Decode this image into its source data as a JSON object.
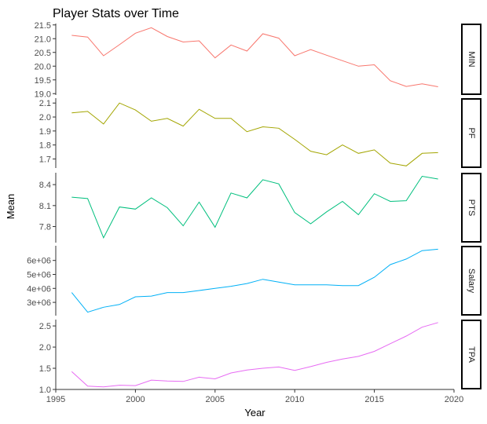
{
  "chart_data": {
    "type": "line",
    "title": "Player Stats over Time",
    "xlabel": "Year",
    "ylabel": "Mean",
    "xlim": [
      1995,
      2020
    ],
    "x_ticks": [
      "1995",
      "2000",
      "2005",
      "2010",
      "2015",
      "2020"
    ],
    "x": [
      1996,
      1997,
      1998,
      1999,
      2000,
      2001,
      2002,
      2003,
      2004,
      2005,
      2006,
      2007,
      2008,
      2009,
      2010,
      2011,
      2012,
      2013,
      2014,
      2015,
      2016,
      2017,
      2018,
      2019
    ],
    "grid": false,
    "legend": "none",
    "facets": [
      {
        "label": "MIN",
        "color": "#F8766D",
        "ylim": [
          18.95,
          21.55
        ],
        "y_ticks": [
          "19.0",
          "19.5",
          "20.0",
          "20.5",
          "21.0",
          "21.5"
        ],
        "values": [
          21.12,
          21.06,
          20.38,
          20.78,
          21.2,
          21.4,
          21.08,
          20.88,
          20.92,
          20.3,
          20.77,
          20.55,
          21.18,
          21.02,
          20.38,
          20.6,
          20.4,
          20.2,
          20.0,
          20.05,
          19.47,
          19.26,
          19.36,
          19.25
        ]
      },
      {
        "label": "PF",
        "color": "#A3A500",
        "ylim": [
          1.635,
          2.135
        ],
        "y_ticks": [
          "1.7",
          "1.8",
          "1.9",
          "2.0",
          "2.1"
        ],
        "values": [
          2.03,
          2.04,
          1.95,
          2.1,
          2.05,
          1.97,
          1.99,
          1.935,
          2.055,
          1.99,
          1.99,
          1.895,
          1.93,
          1.92,
          1.84,
          1.755,
          1.73,
          1.8,
          1.74,
          1.765,
          1.67,
          1.65,
          1.74,
          1.745
        ]
      },
      {
        "label": "PTS",
        "color": "#00BF7D",
        "ylim": [
          7.57,
          8.57
        ],
        "y_ticks": [
          "7.8",
          "8.1",
          "8.4"
        ],
        "values": [
          8.22,
          8.2,
          7.64,
          8.08,
          8.05,
          8.21,
          8.07,
          7.81,
          8.15,
          7.79,
          8.28,
          8.21,
          8.47,
          8.41,
          8.0,
          7.84,
          8.01,
          8.16,
          7.97,
          8.27,
          8.16,
          8.17,
          8.52,
          8.48
        ]
      },
      {
        "label": "Salary",
        "color": "#00B0F6",
        "ylim": [
          2050000,
          7050000
        ],
        "y_ticks": [
          "3e+06",
          "4e+06",
          "5e+06",
          "6e+06"
        ],
        "values": [
          3700000,
          2300000,
          2650000,
          2850000,
          3400000,
          3450000,
          3700000,
          3700000,
          3850000,
          4000000,
          4150000,
          4350000,
          4650000,
          4450000,
          4250000,
          4250000,
          4250000,
          4200000,
          4200000,
          4800000,
          5700000,
          6100000,
          6700000,
          6800000
        ]
      },
      {
        "label": "TPA",
        "color": "#E76BF3",
        "ylim": [
          1.0,
          2.65
        ],
        "y_ticks": [
          "1.0",
          "1.5",
          "2.0",
          "2.5"
        ],
        "values": [
          1.42,
          1.08,
          1.06,
          1.1,
          1.09,
          1.22,
          1.2,
          1.19,
          1.29,
          1.25,
          1.39,
          1.46,
          1.5,
          1.53,
          1.45,
          1.54,
          1.64,
          1.72,
          1.78,
          1.9,
          2.08,
          2.26,
          2.47,
          2.58
        ]
      }
    ]
  }
}
